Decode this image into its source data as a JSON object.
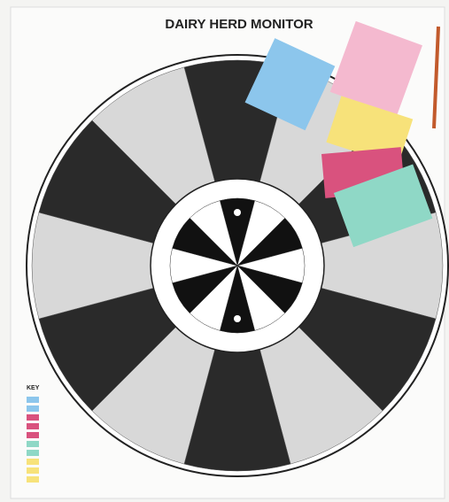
{
  "header": {
    "title": "DAIRY HERD MONITOR"
  },
  "key": {
    "title": "KEY"
  }
}
